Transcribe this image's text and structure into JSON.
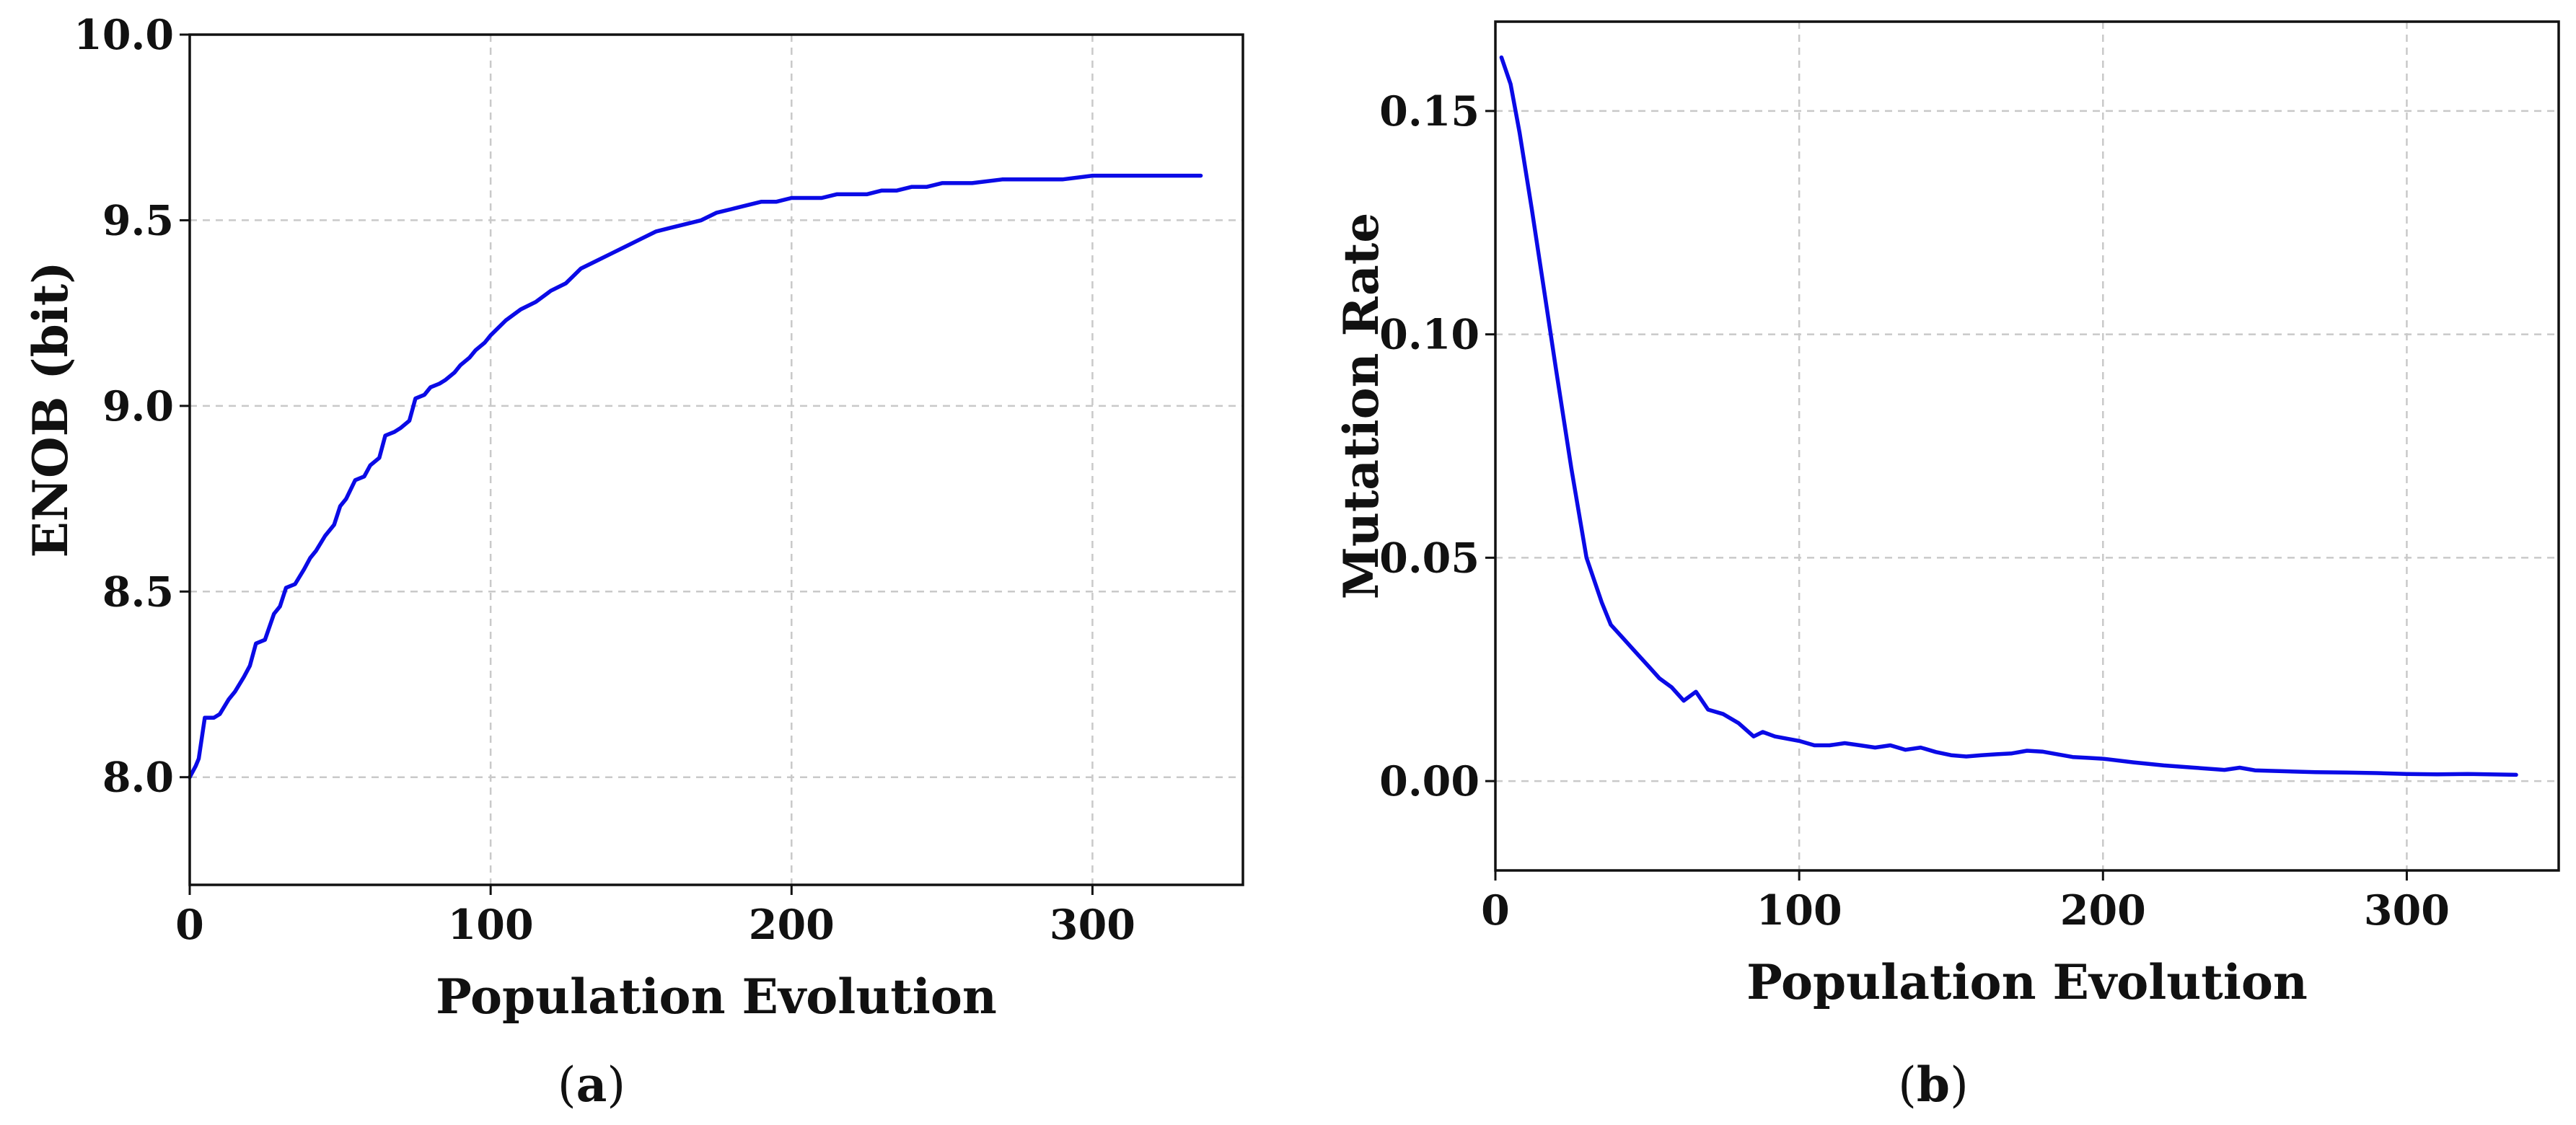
{
  "figure": {
    "line_color": "#0a0ae6"
  },
  "chart_data": [
    {
      "type": "line",
      "panel": "a",
      "caption": {
        "open": "(",
        "letter": "a",
        "close": ")"
      },
      "title": "",
      "xlabel": "Population Evolution",
      "ylabel": "ENOB (bit)",
      "xlim": [
        0,
        350
      ],
      "ylim": [
        7.71,
        10.0
      ],
      "xticks": [
        0,
        100,
        200,
        300
      ],
      "xtick_labels": [
        "0",
        "100",
        "200",
        "300"
      ],
      "yticks": [
        8.0,
        8.5,
        9.0,
        9.5,
        10.0
      ],
      "ytick_labels": [
        "8.0",
        "8.5",
        "9.0",
        "9.5",
        "10.0"
      ],
      "grid": true,
      "series": [
        {
          "name": "ENOB",
          "x": [
            0,
            2,
            3,
            5,
            8,
            10,
            13,
            15,
            18,
            20,
            22,
            25,
            28,
            30,
            32,
            35,
            38,
            40,
            42,
            45,
            48,
            50,
            52,
            55,
            58,
            60,
            63,
            65,
            68,
            70,
            73,
            75,
            78,
            80,
            83,
            85,
            88,
            90,
            93,
            95,
            98,
            100,
            105,
            110,
            115,
            120,
            125,
            130,
            135,
            140,
            145,
            150,
            155,
            160,
            165,
            170,
            175,
            180,
            185,
            190,
            195,
            200,
            205,
            210,
            215,
            220,
            225,
            230,
            235,
            240,
            245,
            250,
            260,
            270,
            280,
            290,
            300,
            310,
            320,
            336
          ],
          "y": [
            8.0,
            8.03,
            8.05,
            8.16,
            8.16,
            8.17,
            8.21,
            8.23,
            8.27,
            8.3,
            8.36,
            8.37,
            8.44,
            8.46,
            8.51,
            8.52,
            8.56,
            8.59,
            8.61,
            8.65,
            8.68,
            8.73,
            8.75,
            8.8,
            8.81,
            8.84,
            8.86,
            8.92,
            8.93,
            8.94,
            8.96,
            9.02,
            9.03,
            9.05,
            9.06,
            9.07,
            9.09,
            9.11,
            9.13,
            9.15,
            9.17,
            9.19,
            9.23,
            9.26,
            9.28,
            9.31,
            9.33,
            9.37,
            9.39,
            9.41,
            9.43,
            9.45,
            9.47,
            9.48,
            9.49,
            9.5,
            9.52,
            9.53,
            9.54,
            9.55,
            9.55,
            9.56,
            9.56,
            9.56,
            9.57,
            9.57,
            9.57,
            9.58,
            9.58,
            9.59,
            9.59,
            9.6,
            9.6,
            9.61,
            9.61,
            9.61,
            9.62,
            9.62,
            9.62,
            9.62
          ]
        }
      ]
    },
    {
      "type": "line",
      "panel": "b",
      "caption": {
        "open": "(",
        "letter": "b",
        "close": ")"
      },
      "title": "",
      "xlabel": "Population Evolution",
      "ylabel": "Mutation Rate",
      "xlim": [
        0,
        350
      ],
      "ylim": [
        -0.02,
        0.17
      ],
      "xticks": [
        0,
        100,
        200,
        300
      ],
      "xtick_labels": [
        "0",
        "100",
        "200",
        "300"
      ],
      "yticks": [
        0.0,
        0.05,
        0.1,
        0.15
      ],
      "ytick_labels": [
        "0.00",
        "0.05",
        "0.10",
        "0.15"
      ],
      "grid": true,
      "series": [
        {
          "name": "Mutation Rate",
          "x": [
            2,
            5,
            8,
            12,
            16,
            20,
            25,
            30,
            35,
            38,
            42,
            46,
            50,
            54,
            58,
            62,
            66,
            70,
            75,
            80,
            85,
            88,
            92,
            96,
            100,
            105,
            110,
            115,
            120,
            125,
            130,
            135,
            140,
            145,
            150,
            155,
            160,
            165,
            170,
            175,
            180,
            185,
            190,
            195,
            200,
            210,
            220,
            230,
            240,
            245,
            250,
            260,
            270,
            280,
            290,
            300,
            310,
            320,
            336
          ],
          "y": [
            0.162,
            0.156,
            0.145,
            0.128,
            0.11,
            0.092,
            0.07,
            0.05,
            0.04,
            0.035,
            0.032,
            0.029,
            0.026,
            0.023,
            0.021,
            0.018,
            0.02,
            0.016,
            0.015,
            0.013,
            0.01,
            0.011,
            0.01,
            0.0095,
            0.009,
            0.008,
            0.008,
            0.0085,
            0.008,
            0.0075,
            0.008,
            0.007,
            0.0075,
            0.0065,
            0.0058,
            0.0055,
            0.0058,
            0.006,
            0.0062,
            0.0068,
            0.0066,
            0.006,
            0.0054,
            0.0052,
            0.005,
            0.0042,
            0.0035,
            0.003,
            0.0025,
            0.003,
            0.0024,
            0.0022,
            0.002,
            0.0019,
            0.0018,
            0.0016,
            0.0015,
            0.0016,
            0.0014
          ]
        }
      ]
    }
  ]
}
